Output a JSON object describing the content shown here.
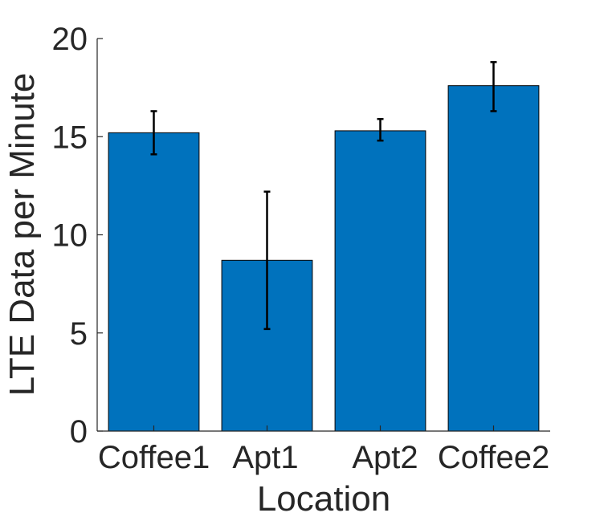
{
  "chart_data": {
    "type": "bar",
    "title": "",
    "xlabel": "Location",
    "ylabel": "LTE Data per Minute",
    "categories": [
      "Coffee1",
      "Apt1",
      "Apt2",
      "Coffee2"
    ],
    "values": [
      15.2,
      8.7,
      15.3,
      17.6
    ],
    "error_low": [
      14.1,
      5.2,
      14.8,
      16.3
    ],
    "error_high": [
      16.3,
      12.2,
      15.9,
      18.8
    ],
    "ylim": [
      0,
      20
    ],
    "yticks": [
      "0",
      "5",
      "10",
      "15",
      "20"
    ],
    "grid": false,
    "bar_color": "#0072BD",
    "error_color": "#000000",
    "axis_color": "#262626"
  }
}
